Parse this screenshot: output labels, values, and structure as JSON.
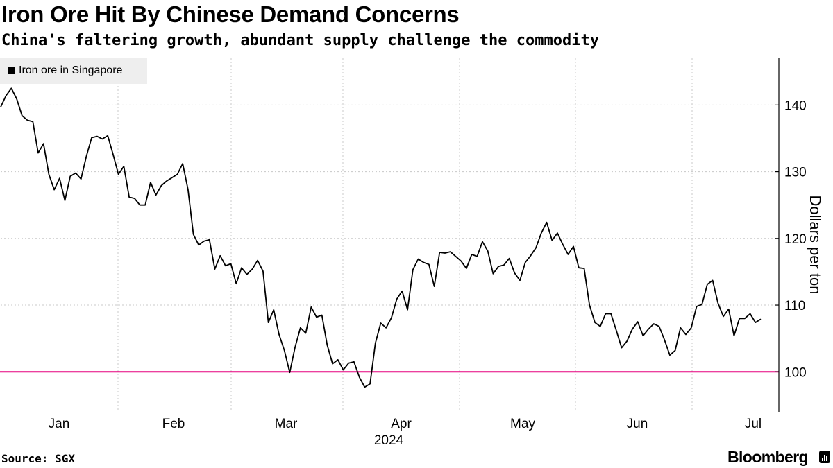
{
  "chart_data": {
    "type": "line",
    "title": "Iron Ore Hit By Chinese Demand Concerns",
    "subtitle": "China's faltering growth, abundant supply challenge the commodity",
    "ylabel": "Dollars per ton",
    "xlabel": "",
    "year_label": "2024",
    "ylim": [
      94,
      147
    ],
    "yticks": [
      100,
      110,
      120,
      130,
      140
    ],
    "reference_line": {
      "value": 100,
      "color": "#e6007e"
    },
    "months": [
      "Jan",
      "Feb",
      "Mar",
      "Apr",
      "May",
      "Jun",
      "Jul"
    ],
    "legend_position": "top-left",
    "series": [
      {
        "name": "Iron ore in Singapore",
        "color": "#000000",
        "values": [
          139.7,
          141.4,
          142.5,
          140.9,
          138.4,
          137.7,
          137.5,
          132.8,
          134.2,
          129.6,
          127.3,
          129.0,
          125.7,
          129.3,
          129.8,
          128.9,
          132.3,
          135.1,
          135.3,
          134.9,
          135.4,
          132.6,
          129.6,
          130.8,
          126.2,
          126.0,
          125.0,
          125.0,
          128.4,
          126.5,
          127.9,
          128.6,
          129.1,
          129.6,
          131.2,
          127.3,
          120.6,
          119.0,
          119.6,
          119.8,
          115.4,
          117.4,
          115.9,
          116.2,
          113.2,
          115.6,
          114.6,
          115.4,
          116.7,
          115.1,
          107.4,
          109.3,
          105.6,
          103.2,
          99.9,
          103.7,
          106.6,
          105.8,
          109.7,
          108.2,
          108.5,
          104.0,
          101.2,
          101.8,
          100.3,
          101.3,
          101.5,
          99.2,
          97.7,
          98.2,
          104.3,
          107.3,
          106.6,
          108.1,
          110.9,
          112.1,
          109.3,
          115.3,
          116.9,
          116.4,
          116.1,
          112.8,
          117.9,
          117.8,
          118.0,
          117.3,
          116.6,
          115.5,
          117.6,
          117.3,
          119.5,
          118.1,
          114.7,
          115.8,
          116.0,
          117.0,
          114.8,
          113.7,
          116.4,
          117.4,
          118.6,
          120.8,
          122.4,
          119.7,
          120.8,
          119.1,
          117.6,
          118.8,
          115.6,
          115.5,
          110.0,
          107.4,
          106.8,
          108.7,
          108.7,
          106.2,
          103.6,
          104.6,
          106.4,
          107.5,
          105.4,
          106.4,
          107.2,
          106.8,
          104.8,
          102.5,
          103.2,
          106.6,
          105.6,
          106.6,
          109.8,
          110.1,
          113.1,
          113.7,
          110.3,
          108.3,
          109.4,
          105.4,
          108.0,
          108.0,
          108.7,
          107.4,
          107.9
        ]
      }
    ]
  },
  "source": "Source: SGX",
  "brand": "Bloomberg"
}
